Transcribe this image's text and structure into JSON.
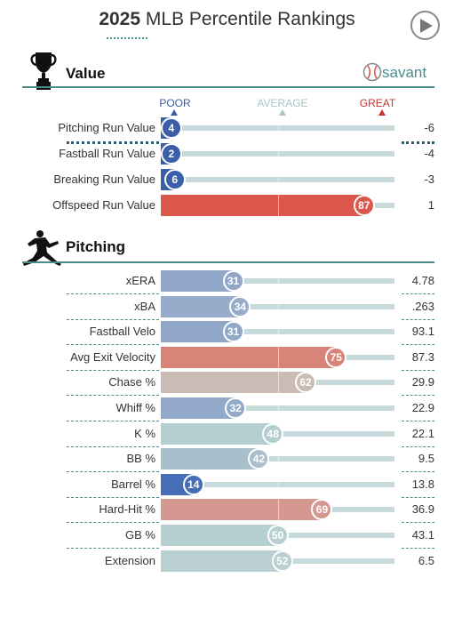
{
  "header": {
    "year": "2025",
    "title": "MLB Percentile Rankings"
  },
  "scale": {
    "poor": "POOR",
    "average": "AVERAGE",
    "great": "GREAT",
    "poor_color": "#3a5ea8",
    "average_color": "#aac3c6",
    "great_color": "#c8312d"
  },
  "brand": {
    "name": "savant"
  },
  "icons": {
    "play": "play-icon",
    "value_section": "trophy-icon",
    "pitching_section": "pitcher-icon",
    "brand": "baseball-icon"
  },
  "chart_data": {
    "type": "bar",
    "title": "MLB Percentile Rankings",
    "xlim": [
      0,
      100
    ],
    "sections": [
      {
        "name": "Value",
        "rows": [
          {
            "label": "Pitching Run Value",
            "percentile": 4,
            "value": "-6",
            "color": "#3a5ea8"
          },
          {
            "label": "Fastball Run Value",
            "percentile": 2,
            "value": "-4",
            "color": "#3a5ea8"
          },
          {
            "label": "Breaking Run Value",
            "percentile": 6,
            "value": "-3",
            "color": "#3a5ea8"
          },
          {
            "label": "Offspeed Run Value",
            "percentile": 87,
            "value": "1",
            "color": "#dc574b"
          }
        ]
      },
      {
        "name": "Pitching",
        "rows": [
          {
            "label": "xERA",
            "percentile": 31,
            "value": "4.78",
            "color": "#91a7c8"
          },
          {
            "label": "xBA",
            "percentile": 34,
            "value": ".263",
            "color": "#97acca"
          },
          {
            "label": "Fastball Velo",
            "percentile": 31,
            "value": "93.1",
            "color": "#91a7c8"
          },
          {
            "label": "Avg Exit Velocity",
            "percentile": 75,
            "value": "87.3",
            "color": "#d88478"
          },
          {
            "label": "Chase %",
            "percentile": 62,
            "value": "29.9",
            "color": "#cbbbb5"
          },
          {
            "label": "Whiff %",
            "percentile": 32,
            "value": "22.9",
            "color": "#93a9c9"
          },
          {
            "label": "K %",
            "percentile": 48,
            "value": "22.1",
            "color": "#b3ced0"
          },
          {
            "label": "BB %",
            "percentile": 42,
            "value": "9.5",
            "color": "#a9bfcc"
          },
          {
            "label": "Barrel %",
            "percentile": 14,
            "value": "13.8",
            "color": "#466eb6"
          },
          {
            "label": "Hard-Hit %",
            "percentile": 69,
            "value": "36.9",
            "color": "#d59890"
          },
          {
            "label": "GB %",
            "percentile": 50,
            "value": "43.1",
            "color": "#b6cfd1"
          },
          {
            "label": "Extension",
            "percentile": 52,
            "value": "6.5",
            "color": "#b9cfd2"
          }
        ]
      }
    ]
  }
}
